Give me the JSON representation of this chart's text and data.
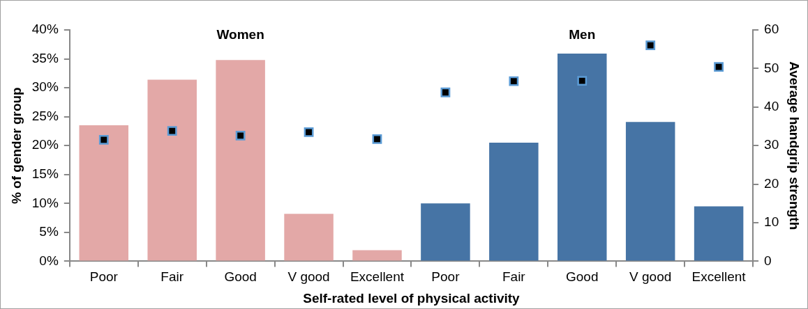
{
  "chart_data": {
    "type": "bar",
    "xlabel": "Self-rated level of physical activity",
    "ylabel": "% of gender group",
    "y2label": "Average handgrip strength",
    "categories": [
      "Poor",
      "Fair",
      "Good",
      "V good",
      "Excellent",
      "Poor",
      "Fair",
      "Good",
      "V good",
      "Excellent"
    ],
    "stacked": true,
    "series": [
      {
        "name": "Women",
        "color": "#e3a8a7",
        "values": [
          23.5,
          31.4,
          34.8,
          8.2,
          1.9,
          null,
          null,
          null,
          null,
          null
        ]
      },
      {
        "name": "Men",
        "color": "#4674a5",
        "values": [
          null,
          null,
          null,
          null,
          null,
          10.0,
          20.5,
          35.9,
          24.1,
          9.5
        ]
      },
      {
        "type": "scatter",
        "axis": "y2",
        "color": "#000000",
        "values": [
          31.5,
          33.8,
          32.6,
          33.5,
          31.7,
          43.8,
          46.7,
          46.8,
          56.0,
          50.4
        ]
      }
    ],
    "marker": "square",
    "ylim": [
      0,
      40
    ],
    "yticks": [
      {
        "value": 0,
        "label": "0%"
      },
      {
        "value": 5,
        "label": "5%"
      },
      {
        "value": 10,
        "label": "10%"
      },
      {
        "value": 15,
        "label": "15%"
      },
      {
        "value": 20,
        "label": "20%"
      },
      {
        "value": 25,
        "label": "25%"
      },
      {
        "value": 30,
        "label": "30%"
      },
      {
        "value": 35,
        "label": "35%"
      },
      {
        "value": 40,
        "label": "40%"
      }
    ],
    "y2lim": [
      0,
      60
    ],
    "y2ticks": [
      0,
      10,
      20,
      30,
      40,
      50,
      60
    ],
    "grid": false,
    "legend": false
  }
}
